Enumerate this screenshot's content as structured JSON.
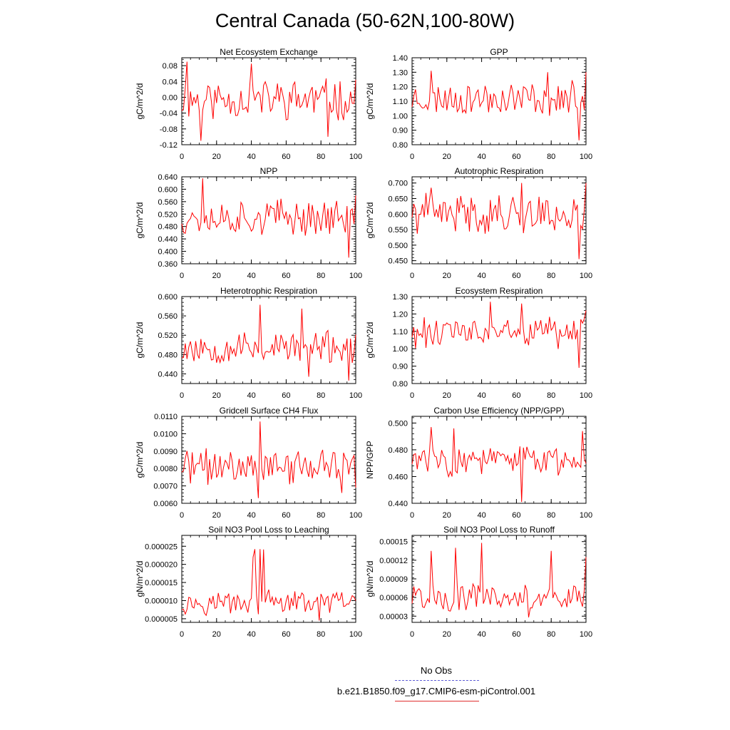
{
  "title": "Central Canada (50-62N,100-80W)",
  "legend": {
    "obs_label": "No Obs",
    "run_label": "b.e21.B1850.f09_g17.CMIP6-esm-piControl.001",
    "obs_color": "#5c5cd6",
    "run_color": "#ff0000"
  },
  "chart_data": [
    {
      "type": "line",
      "title": "Net Ecosystem Exchange",
      "ylabel": "gC/m^2/d",
      "xlim": [
        0,
        100
      ],
      "ylim": [
        -0.12,
        0.1
      ],
      "yticks": [
        "0.08",
        "0.04",
        "0.00",
        "-0.04",
        "-0.08",
        "-0.12"
      ],
      "ytick_values": [
        0.08,
        0.04,
        0,
        -0.04,
        -0.08,
        -0.12
      ],
      "xticks": [
        "0",
        "20",
        "40",
        "60",
        "80",
        "100"
      ],
      "series": [
        {
          "name": "b.e21.B1850.f09_g17.CMIP6-esm-piControl.001",
          "mean": -0.005,
          "amp": 0.045,
          "seed": 11,
          "spikes": [
            [
              3,
              0.09
            ],
            [
              11,
              -0.11
            ],
            [
              40,
              0.085
            ],
            [
              84,
              -0.1
            ]
          ]
        }
      ]
    },
    {
      "type": "line",
      "title": "GPP",
      "ylabel": "gC/m^2/d",
      "xlim": [
        0,
        100
      ],
      "ylim": [
        0.8,
        1.4
      ],
      "yticks": [
        "1.40",
        "1.30",
        "1.20",
        "1.10",
        "1.00",
        "0.90",
        "0.80"
      ],
      "ytick_values": [
        1.4,
        1.3,
        1.2,
        1.1,
        1.0,
        0.9,
        0.8
      ],
      "xticks": [
        "0",
        "20",
        "40",
        "60",
        "80",
        "100"
      ],
      "series": [
        {
          "name": "b.e21.B1850.f09_g17.CMIP6-esm-piControl.001",
          "mean": 1.12,
          "amp": 0.1,
          "seed": 23,
          "spikes": [
            [
              11,
              1.31
            ],
            [
              78,
              1.3
            ],
            [
              96,
              0.83
            ],
            [
              100,
              1.3
            ]
          ]
        }
      ]
    },
    {
      "type": "line",
      "title": "NPP",
      "ylabel": "gC/m^2/d",
      "xlim": [
        0,
        100
      ],
      "ylim": [
        0.36,
        0.64
      ],
      "yticks": [
        "0.640",
        "0.600",
        "0.560",
        "0.520",
        "0.480",
        "0.440",
        "0.400",
        "0.360"
      ],
      "ytick_values": [
        0.64,
        0.6,
        0.56,
        0.52,
        0.48,
        0.44,
        0.4,
        0.36
      ],
      "xticks": [
        "0",
        "20",
        "40",
        "60",
        "80",
        "100"
      ],
      "series": [
        {
          "name": "b.e21.B1850.f09_g17.CMIP6-esm-piControl.001",
          "mean": 0.51,
          "amp": 0.05,
          "seed": 37,
          "spikes": [
            [
              12,
              0.635
            ],
            [
              96,
              0.38
            ],
            [
              100,
              0.58
            ]
          ]
        }
      ]
    },
    {
      "type": "line",
      "title": "Autotrophic Respiration",
      "ylabel": "gC/m^2/d",
      "xlim": [
        0,
        100
      ],
      "ylim": [
        0.44,
        0.72
      ],
      "yticks": [
        "0.700",
        "0.650",
        "0.600",
        "0.550",
        "0.500",
        "0.450"
      ],
      "ytick_values": [
        0.7,
        0.65,
        0.6,
        0.55,
        0.5,
        0.45
      ],
      "xticks": [
        "0",
        "20",
        "40",
        "60",
        "80",
        "100"
      ],
      "series": [
        {
          "name": "b.e21.B1850.f09_g17.CMIP6-esm-piControl.001",
          "mean": 0.6,
          "amp": 0.055,
          "seed": 41,
          "spikes": [
            [
              11,
              0.685
            ],
            [
              63,
              0.7
            ],
            [
              96,
              0.455
            ],
            [
              100,
              0.7
            ]
          ]
        }
      ]
    },
    {
      "type": "line",
      "title": "Heterotrophic Respiration",
      "ylabel": "gC/m^2/d",
      "xlim": [
        0,
        100
      ],
      "ylim": [
        0.42,
        0.6
      ],
      "yticks": [
        "0.600",
        "0.560",
        "0.520",
        "0.480",
        "0.440"
      ],
      "ytick_values": [
        0.6,
        0.56,
        0.52,
        0.48,
        0.44
      ],
      "xticks": [
        "0",
        "20",
        "40",
        "60",
        "80",
        "100"
      ],
      "series": [
        {
          "name": "b.e21.B1850.f09_g17.CMIP6-esm-piControl.001",
          "mean": 0.495,
          "amp": 0.03,
          "seed": 53,
          "spikes": [
            [
              45,
              0.583
            ],
            [
              69,
              0.575
            ],
            [
              73,
              0.434
            ],
            [
              96,
              0.426
            ]
          ]
        }
      ]
    },
    {
      "type": "line",
      "title": "Ecosystem Respiration",
      "ylabel": "gC/m^2/d",
      "xlim": [
        0,
        100
      ],
      "ylim": [
        0.8,
        1.3
      ],
      "yticks": [
        "1.30",
        "1.20",
        "1.10",
        "1.00",
        "0.90",
        "0.80"
      ],
      "ytick_values": [
        1.3,
        1.2,
        1.1,
        1.0,
        0.9,
        0.8
      ],
      "xticks": [
        "0",
        "20",
        "40",
        "60",
        "80",
        "100"
      ],
      "series": [
        {
          "name": "b.e21.B1850.f09_g17.CMIP6-esm-piControl.001",
          "mean": 1.09,
          "amp": 0.08,
          "seed": 61,
          "spikes": [
            [
              45,
              1.27
            ],
            [
              63,
              1.26
            ],
            [
              96,
              0.89
            ],
            [
              100,
              1.22
            ]
          ]
        }
      ]
    },
    {
      "type": "line",
      "title": "Gridcell Surface CH4 Flux",
      "ylabel": "gC/m^2/d",
      "xlim": [
        0,
        100
      ],
      "ylim": [
        0.006,
        0.011
      ],
      "yticks": [
        "0.0110",
        "0.0100",
        "0.0090",
        "0.0080",
        "0.0070",
        "0.0060"
      ],
      "ytick_values": [
        0.011,
        0.01,
        0.009,
        0.008,
        0.007,
        0.006
      ],
      "xticks": [
        "0",
        "20",
        "40",
        "60",
        "80",
        "100"
      ],
      "series": [
        {
          "name": "b.e21.B1850.f09_g17.CMIP6-esm-piControl.001",
          "mean": 0.0081,
          "amp": 0.0009,
          "seed": 71,
          "spikes": [
            [
              44,
              0.0063
            ],
            [
              45,
              0.0107
            ],
            [
              92,
              0.0066
            ],
            [
              100,
              0.0069
            ]
          ]
        }
      ]
    },
    {
      "type": "line",
      "title": "Carbon Use Efficiency (NPP/GPP)",
      "ylabel": "NPP/GPP",
      "xlim": [
        0,
        100
      ],
      "ylim": [
        0.44,
        0.505
      ],
      "yticks": [
        "0.500",
        "0.480",
        "0.460",
        "0.440"
      ],
      "ytick_values": [
        0.5,
        0.48,
        0.46,
        0.44
      ],
      "xticks": [
        "0",
        "20",
        "40",
        "60",
        "80",
        "100"
      ],
      "series": [
        {
          "name": "b.e21.B1850.f09_g17.CMIP6-esm-piControl.001",
          "mean": 0.472,
          "amp": 0.01,
          "seed": 83,
          "spikes": [
            [
              11,
              0.497
            ],
            [
              24,
              0.496
            ],
            [
              63,
              0.441
            ],
            [
              98,
              0.494
            ]
          ]
        }
      ]
    },
    {
      "type": "line",
      "title": "Soil NO3 Pool Loss to Leaching",
      "ylabel": "gN/m^2/d",
      "xlim": [
        0,
        100
      ],
      "ylim": [
        4e-06,
        2.8e-05
      ],
      "yticks": [
        "0.000025",
        "0.000020",
        "0.000015",
        "0.000010",
        "0.000005"
      ],
      "ytick_values": [
        2.5e-05,
        2e-05,
        1.5e-05,
        1e-05,
        5e-06
      ],
      "xticks": [
        "0",
        "20",
        "40",
        "60",
        "80",
        "100"
      ],
      "series": [
        {
          "name": "b.e21.B1850.f09_g17.CMIP6-esm-piControl.001",
          "mean": 9.5e-06,
          "amp": 2.8e-06,
          "seed": 97,
          "spikes": [
            [
              41,
              2.2e-05
            ],
            [
              42,
              2.42e-05
            ],
            [
              45,
              2.42e-05
            ],
            [
              47,
              2.41e-05
            ],
            [
              48,
              9.5e-06
            ],
            [
              79,
              4.5e-06
            ]
          ]
        }
      ]
    },
    {
      "type": "line",
      "title": "Soil NO3 Pool Loss to Runoff",
      "ylabel": "gN/m^2/d",
      "xlim": [
        0,
        100
      ],
      "ylim": [
        2e-05,
        0.00016
      ],
      "yticks": [
        "0.00015",
        "0.00012",
        "0.00009",
        "0.00006",
        "0.00003"
      ],
      "ytick_values": [
        0.00015,
        0.00012,
        9e-05,
        6e-05,
        3e-05
      ],
      "xticks": [
        "0",
        "20",
        "40",
        "60",
        "80",
        "100"
      ],
      "series": [
        {
          "name": "b.e21.B1850.f09_g17.CMIP6-esm-piControl.001",
          "mean": 6e-05,
          "amp": 2e-05,
          "seed": 101,
          "spikes": [
            [
              11,
              0.000135
            ],
            [
              25,
              0.00014
            ],
            [
              40,
              0.000148
            ],
            [
              80,
              0.000135
            ],
            [
              67,
              2.8e-05
            ],
            [
              100,
              0.000125
            ]
          ]
        }
      ]
    }
  ]
}
